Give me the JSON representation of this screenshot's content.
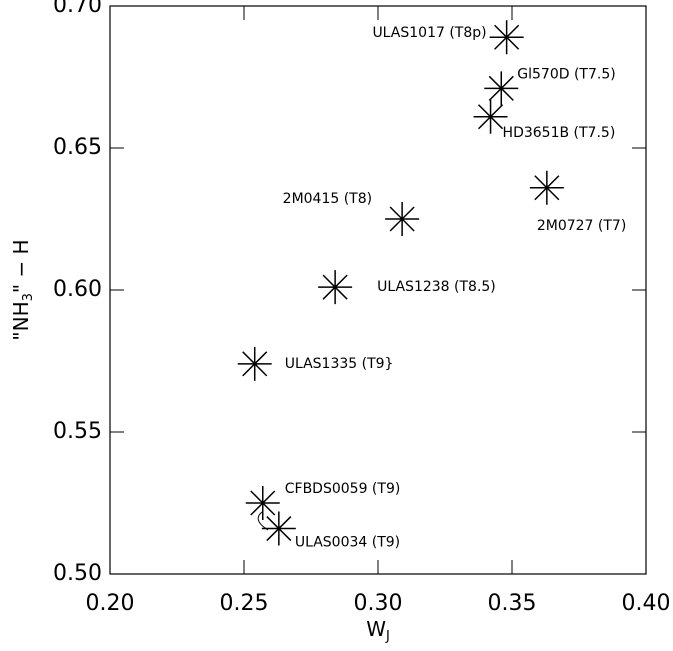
{
  "chart_data": {
    "type": "scatter",
    "xlabel": [
      "W",
      "J"
    ],
    "ylabel": [
      "\"NH",
      "3",
      "\" − H"
    ],
    "series": [
      {
        "color": "#000000",
        "x": [
          0.348,
          0.346,
          0.342,
          0.363,
          0.309,
          0.284,
          0.254,
          0.257,
          0.263
        ],
        "values": [
          0.689,
          0.671,
          0.661,
          0.636,
          0.625,
          0.601,
          0.574,
          0.525,
          0.516
        ],
        "labels": [
          "ULAS1017 (T8p)",
          "Gl570D (T7.5)",
          "HD3651B (T7.5)",
          "2M0727 (T7)",
          "2M0415 (T8)",
          "ULAS1238 (T8.5)",
          "ULAS1335 (T9}",
          "CFBDS0059 (T9)",
          "ULAS0034 (T9)"
        ]
      }
    ],
    "xlim": [
      0.2,
      0.4
    ],
    "ylim": [
      0.5,
      0.7
    ],
    "xticks": [
      {
        "value": 0.2,
        "label": "0.20"
      },
      {
        "value": 0.25,
        "label": "0.25"
      },
      {
        "value": 0.3,
        "label": "0.30"
      },
      {
        "value": 0.35,
        "label": "0.35"
      },
      {
        "value": 0.4,
        "label": "0.40"
      }
    ],
    "yticks": [
      {
        "value": 0.5,
        "label": "0.50"
      },
      {
        "value": 0.55,
        "label": "0.55"
      },
      {
        "value": 0.6,
        "label": "0.60"
      },
      {
        "value": 0.65,
        "label": "0.65"
      },
      {
        "value": 0.7,
        "label": "0.70"
      }
    ]
  }
}
